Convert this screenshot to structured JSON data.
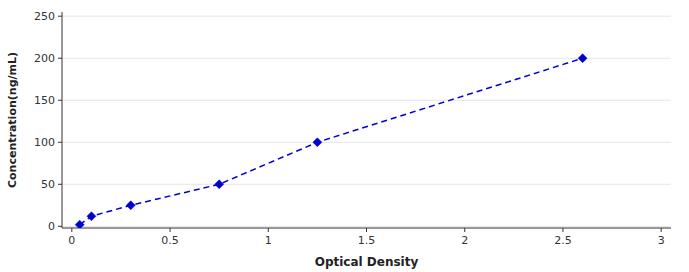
{
  "chart_data": {
    "type": "line",
    "x": [
      0.04,
      0.1,
      0.3,
      0.75,
      1.25,
      2.6
    ],
    "values": [
      2,
      12,
      25,
      50,
      100,
      200
    ],
    "color": "#0000CD",
    "marker": "diamond",
    "line_style": "dashed",
    "xlabel": "Optical Density",
    "ylabel": "Concentration(ng/mL)",
    "xlim": [
      -0.05,
      3.05
    ],
    "ylim": [
      -2,
      255
    ],
    "xticks": [
      0,
      0.5,
      1,
      1.5,
      2,
      2.5,
      3
    ],
    "yticks": [
      0,
      50,
      100,
      150,
      200,
      250
    ]
  }
}
